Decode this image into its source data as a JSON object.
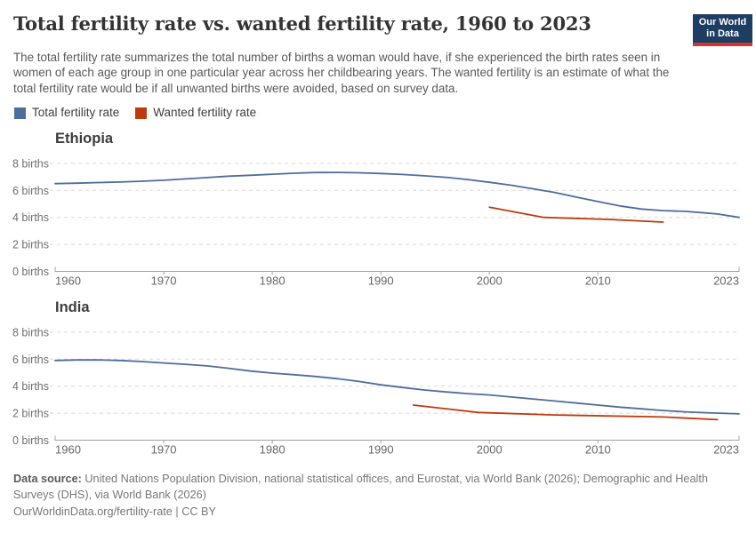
{
  "header": {
    "title": "Total fertility rate vs. wanted fertility rate, 1960 to 2023",
    "subtitle": "The total fertility rate summarizes the total number of births a woman would have, if she experienced the birth rates seen in women of each age group in one particular year across her childbearing years. The wanted fertility is an estimate of what the total fertility rate would be if all unwanted births were avoided, based on survey data.",
    "logo": {
      "line1": "Our World",
      "line2": "in Data",
      "bg_color": "#1d3d63",
      "bar_color": "#d0352f"
    }
  },
  "legend": {
    "items": [
      {
        "label": "Total fertility rate",
        "color": "#4d6d9d"
      },
      {
        "label": "Wanted fertility rate",
        "color": "#bd3a0d"
      }
    ]
  },
  "chart_data": [
    {
      "type": "line",
      "title": "Ethiopia",
      "ylabel": "births",
      "ylim": [
        0,
        8
      ],
      "yticks": [
        0,
        2,
        4,
        6,
        8
      ],
      "ytick_label_format": "{v} births",
      "xlim": [
        1960,
        2023
      ],
      "xticks": [
        1960,
        1970,
        1980,
        1990,
        2000,
        2010,
        2023
      ],
      "grid": "horizontal-dashed",
      "series": [
        {
          "name": "Total fertility rate",
          "color": "#4d6d9d",
          "points": [
            [
              1960,
              6.5
            ],
            [
              1962,
              6.53
            ],
            [
              1964,
              6.58
            ],
            [
              1966,
              6.62
            ],
            [
              1968,
              6.68
            ],
            [
              1970,
              6.75
            ],
            [
              1972,
              6.85
            ],
            [
              1974,
              6.95
            ],
            [
              1976,
              7.05
            ],
            [
              1978,
              7.12
            ],
            [
              1980,
              7.2
            ],
            [
              1982,
              7.27
            ],
            [
              1984,
              7.32
            ],
            [
              1986,
              7.33
            ],
            [
              1988,
              7.3
            ],
            [
              1990,
              7.25
            ],
            [
              1992,
              7.18
            ],
            [
              1994,
              7.08
            ],
            [
              1996,
              6.97
            ],
            [
              1998,
              6.8
            ],
            [
              2000,
              6.6
            ],
            [
              2002,
              6.38
            ],
            [
              2004,
              6.12
            ],
            [
              2006,
              5.85
            ],
            [
              2008,
              5.5
            ],
            [
              2010,
              5.17
            ],
            [
              2012,
              4.85
            ],
            [
              2014,
              4.62
            ],
            [
              2016,
              4.5
            ],
            [
              2018,
              4.45
            ],
            [
              2020,
              4.32
            ],
            [
              2021,
              4.25
            ],
            [
              2023,
              4.0
            ]
          ]
        },
        {
          "name": "Wanted fertility rate",
          "color": "#bd3a0d",
          "points": [
            [
              2000,
              4.75
            ],
            [
              2005,
              4.0
            ],
            [
              2011,
              3.85
            ],
            [
              2016,
              3.65
            ]
          ]
        }
      ]
    },
    {
      "type": "line",
      "title": "India",
      "ylabel": "births",
      "ylim": [
        0,
        8
      ],
      "yticks": [
        0,
        2,
        4,
        6,
        8
      ],
      "ytick_label_format": "{v} births",
      "xlim": [
        1960,
        2023
      ],
      "xticks": [
        1960,
        1970,
        1980,
        1990,
        2000,
        2010,
        2023
      ],
      "grid": "horizontal-dashed",
      "series": [
        {
          "name": "Total fertility rate",
          "color": "#4d6d9d",
          "points": [
            [
              1960,
              5.9
            ],
            [
              1962,
              5.94
            ],
            [
              1964,
              5.95
            ],
            [
              1966,
              5.9
            ],
            [
              1968,
              5.82
            ],
            [
              1970,
              5.72
            ],
            [
              1972,
              5.62
            ],
            [
              1974,
              5.5
            ],
            [
              1976,
              5.32
            ],
            [
              1978,
              5.12
            ],
            [
              1980,
              4.97
            ],
            [
              1982,
              4.85
            ],
            [
              1984,
              4.72
            ],
            [
              1986,
              4.55
            ],
            [
              1988,
              4.35
            ],
            [
              1990,
              4.1
            ],
            [
              1992,
              3.9
            ],
            [
              1994,
              3.72
            ],
            [
              1996,
              3.57
            ],
            [
              1998,
              3.45
            ],
            [
              2000,
              3.35
            ],
            [
              2002,
              3.2
            ],
            [
              2004,
              3.05
            ],
            [
              2006,
              2.9
            ],
            [
              2008,
              2.75
            ],
            [
              2010,
              2.6
            ],
            [
              2012,
              2.45
            ],
            [
              2014,
              2.32
            ],
            [
              2016,
              2.2
            ],
            [
              2018,
              2.1
            ],
            [
              2020,
              2.03
            ],
            [
              2023,
              1.95
            ]
          ]
        },
        {
          "name": "Wanted fertility rate",
          "color": "#bd3a0d",
          "points": [
            [
              1993,
              2.6
            ],
            [
              1999,
              2.05
            ],
            [
              2006,
              1.87
            ],
            [
              2016,
              1.72
            ],
            [
              2021,
              1.52
            ]
          ]
        }
      ]
    }
  ],
  "footer": {
    "data_source_label": "Data source:",
    "data_source_text": " United Nations Population Division, national statistical offices, and Eurostat, via World Bank (2026); Demographic and Health Surveys (DHS), via World Bank (2026)",
    "attribution": "OurWorldinData.org/fertility-rate | CC BY"
  }
}
